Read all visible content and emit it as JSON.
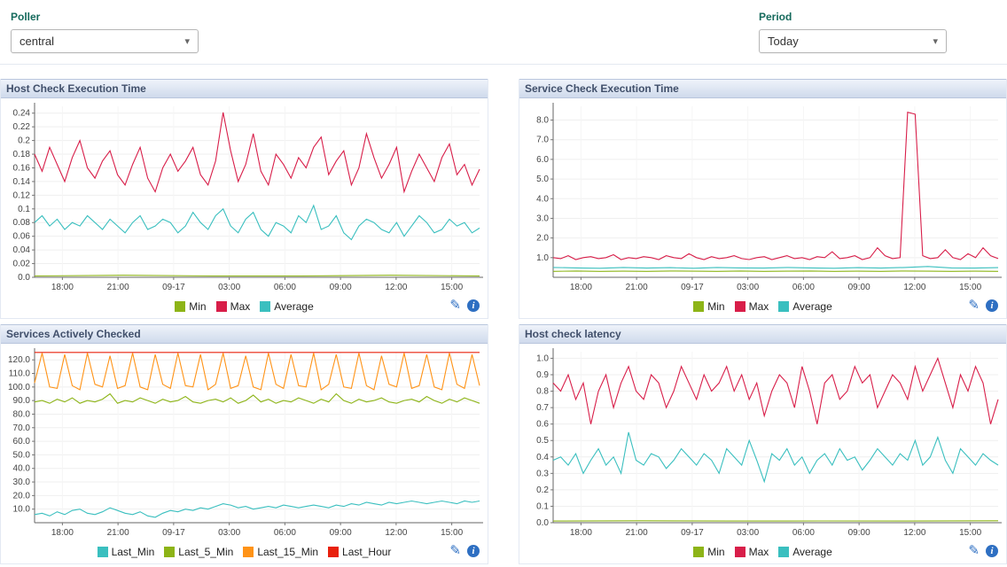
{
  "filters": {
    "poller_label": "Poller",
    "poller_value": "central",
    "period_label": "Period",
    "period_value": "Today"
  },
  "icons": {
    "dropdown_arrow": "▾",
    "edit": "✎",
    "info": "i"
  },
  "colors": {
    "min": "#8db417",
    "max": "#d81e49",
    "average": "#3abfbf",
    "last_min": "#3abfbf",
    "last_5_min": "#8db417",
    "last_15_min": "#ff9317",
    "last_hour": "#e8200c",
    "icon_blue": "#2e6fc2"
  },
  "charts": [
    {
      "title": "Host Check Execution Time",
      "type": "line",
      "x_tick_labels": [
        "18:00",
        "21:00",
        "09-17",
        "03:00",
        "06:00",
        "09:00",
        "12:00",
        "15:00"
      ],
      "ylim": [
        0,
        0.25
      ],
      "ytick_values": [
        0.24,
        0.22,
        0.2,
        0.18,
        0.16,
        0.14,
        0.12,
        0.1,
        0.08,
        0.06,
        0.04,
        0.02,
        0
      ],
      "ytick_labels": [
        "0.24",
        "0.22",
        "0.2",
        "0.18",
        "0.16",
        "0.14",
        "0.12",
        "0.1",
        "0.08",
        "0.06",
        "0.04",
        "0.02",
        "0.0"
      ],
      "legend": [
        {
          "label": "Min",
          "color": "#8db417"
        },
        {
          "label": "Max",
          "color": "#d81e49"
        },
        {
          "label": "Average",
          "color": "#3abfbf"
        }
      ],
      "series": [
        {
          "name": "Min",
          "color": "#8db417",
          "values": [
            0.002,
            0.003,
            0.002,
            0.002,
            0.003,
            0.002
          ]
        },
        {
          "name": "Average",
          "color": "#3abfbf",
          "values": [
            0.08,
            0.09,
            0.075,
            0.085,
            0.07,
            0.08,
            0.075,
            0.09,
            0.08,
            0.07,
            0.085,
            0.075,
            0.065,
            0.08,
            0.09,
            0.07,
            0.075,
            0.085,
            0.08,
            0.065,
            0.075,
            0.095,
            0.08,
            0.07,
            0.09,
            0.1,
            0.075,
            0.065,
            0.085,
            0.095,
            0.07,
            0.06,
            0.08,
            0.075,
            0.065,
            0.09,
            0.08,
            0.105,
            0.07,
            0.075,
            0.09,
            0.065,
            0.055,
            0.075,
            0.085,
            0.08,
            0.07,
            0.065,
            0.08,
            0.06,
            0.075,
            0.09,
            0.08,
            0.065,
            0.07,
            0.085,
            0.075,
            0.08,
            0.065,
            0.072
          ]
        },
        {
          "name": "Max",
          "color": "#d81e49",
          "values": [
            0.18,
            0.155,
            0.19,
            0.165,
            0.14,
            0.175,
            0.2,
            0.16,
            0.145,
            0.17,
            0.185,
            0.15,
            0.135,
            0.165,
            0.19,
            0.145,
            0.125,
            0.16,
            0.18,
            0.155,
            0.17,
            0.19,
            0.15,
            0.135,
            0.17,
            0.241,
            0.185,
            0.14,
            0.165,
            0.21,
            0.155,
            0.135,
            0.18,
            0.165,
            0.145,
            0.175,
            0.16,
            0.19,
            0.205,
            0.15,
            0.17,
            0.185,
            0.135,
            0.16,
            0.21,
            0.175,
            0.145,
            0.165,
            0.19,
            0.125,
            0.155,
            0.18,
            0.16,
            0.14,
            0.175,
            0.195,
            0.15,
            0.165,
            0.135,
            0.158
          ]
        }
      ]
    },
    {
      "title": "Service Check Execution Time",
      "type": "line",
      "x_tick_labels": [
        "18:00",
        "21:00",
        "09-17",
        "03:00",
        "06:00",
        "09:00",
        "12:00",
        "15:00"
      ],
      "ylim": [
        0,
        8.7
      ],
      "ytick_values": [
        8,
        7,
        6,
        5,
        4,
        3,
        2,
        1
      ],
      "ytick_labels": [
        "8.0",
        "7.0",
        "6.0",
        "5.0",
        "4.0",
        "3.0",
        "2.0",
        "1.0"
      ],
      "legend": [
        {
          "label": "Min",
          "color": "#8db417"
        },
        {
          "label": "Max",
          "color": "#d81e49"
        },
        {
          "label": "Average",
          "color": "#3abfbf"
        }
      ],
      "series": [
        {
          "name": "Min",
          "color": "#8db417",
          "values": [
            0.3,
            0.32,
            0.3,
            0.31,
            0.3,
            0.32,
            0.31,
            0.3,
            0.32,
            0.3,
            0.31,
            0.32,
            0.3,
            0.31,
            0.3,
            0.32,
            0.31,
            0.3,
            0.31,
            0.3
          ]
        },
        {
          "name": "Average",
          "color": "#3abfbf",
          "values": [
            0.5,
            0.48,
            0.46,
            0.5,
            0.47,
            0.49,
            0.46,
            0.5,
            0.48,
            0.47,
            0.5,
            0.48,
            0.46,
            0.49,
            0.47,
            0.5,
            0.55,
            0.48,
            0.47,
            0.49
          ]
        },
        {
          "name": "Max",
          "color": "#d81e49",
          "values": [
            1.0,
            0.95,
            1.1,
            0.9,
            1.0,
            1.05,
            0.95,
            1.0,
            1.15,
            0.9,
            1.0,
            0.95,
            1.05,
            1.0,
            0.9,
            1.1,
            1.0,
            0.95,
            1.2,
            1.0,
            0.9,
            1.05,
            0.95,
            1.0,
            1.1,
            0.95,
            0.9,
            1.0,
            1.05,
            0.9,
            1.0,
            1.1,
            0.95,
            1.0,
            0.9,
            1.05,
            1.0,
            1.3,
            0.95,
            1.0,
            1.1,
            0.9,
            1.0,
            1.5,
            1.1,
            0.95,
            1.0,
            8.4,
            8.3,
            1.1,
            0.95,
            1.0,
            1.4,
            1.0,
            0.9,
            1.2,
            1.0,
            1.5,
            1.1,
            0.95
          ]
        }
      ]
    },
    {
      "title": "Services Actively Checked",
      "type": "line",
      "x_tick_labels": [
        "18:00",
        "21:00",
        "09-17",
        "03:00",
        "06:00",
        "09:00",
        "12:00",
        "15:00"
      ],
      "ylim": [
        0,
        126
      ],
      "ytick_values": [
        120,
        110,
        100,
        90,
        80,
        70,
        60,
        50,
        40,
        30,
        20,
        10
      ],
      "ytick_labels": [
        "120.0",
        "110.0",
        "100.0",
        "90.0",
        "80.0",
        "70.0",
        "60.0",
        "50.0",
        "40.0",
        "30.0",
        "20.0",
        "10.0"
      ],
      "legend": [
        {
          "label": "Last_Min",
          "color": "#3abfbf"
        },
        {
          "label": "Last_5_Min",
          "color": "#8db417"
        },
        {
          "label": "Last_15_Min",
          "color": "#ff9317"
        },
        {
          "label": "Last_Hour",
          "color": "#e8200c"
        }
      ],
      "series": [
        {
          "name": "Last_Hour",
          "color": "#e8200c",
          "values": [
            125.5,
            125.5
          ]
        },
        {
          "name": "Last_Min",
          "color": "#3abfbf",
          "values": [
            6,
            7,
            5,
            8,
            6,
            9,
            10,
            7,
            6,
            8,
            11,
            9,
            7,
            6,
            8,
            5,
            4,
            7,
            9,
            8,
            10,
            9,
            11,
            10,
            12,
            14,
            13,
            11,
            12,
            10,
            11,
            12,
            11,
            13,
            12,
            11,
            12,
            13,
            12,
            11,
            13,
            12,
            14,
            13,
            15,
            14,
            13,
            15,
            14,
            15,
            16,
            15,
            14,
            15,
            16,
            15,
            14,
            16,
            15,
            16
          ]
        },
        {
          "name": "Last_5_Min",
          "color": "#8db417",
          "values": [
            89,
            90,
            88,
            91,
            89,
            92,
            88,
            90,
            89,
            91,
            95,
            88,
            90,
            89,
            92,
            90,
            88,
            91,
            89,
            90,
            93,
            89,
            88,
            90,
            91,
            89,
            92,
            88,
            90,
            94,
            89,
            91,
            88,
            90,
            89,
            92,
            90,
            88,
            91,
            89,
            95,
            90,
            88,
            91,
            89,
            90,
            92,
            89,
            88,
            90,
            91,
            89,
            93,
            90,
            88,
            91,
            89,
            92,
            90,
            88
          ]
        },
        {
          "name": "Last_15_Min",
          "color": "#ff9317",
          "values": [
            103,
            125,
            100,
            99,
            124,
            101,
            98,
            125,
            102,
            100,
            123,
            99,
            101,
            125,
            100,
            98,
            124,
            102,
            99,
            125,
            101,
            100,
            124,
            98,
            102,
            125,
            99,
            101,
            123,
            100,
            98,
            125,
            102,
            99,
            124,
            101,
            100,
            125,
            98,
            102,
            124,
            100,
            99,
            125,
            101,
            98,
            123,
            102,
            100,
            125,
            99,
            101,
            124,
            100,
            98,
            125,
            102,
            99,
            124,
            101
          ]
        }
      ]
    },
    {
      "title": "Host check latency",
      "type": "line",
      "x_tick_labels": [
        "18:00",
        "21:00",
        "09-17",
        "03:00",
        "06:00",
        "09:00",
        "12:00",
        "15:00"
      ],
      "ylim": [
        0,
        1.04
      ],
      "ytick_values": [
        1.0,
        0.9,
        0.8,
        0.7,
        0.6,
        0.5,
        0.4,
        0.3,
        0.2,
        0.1,
        0
      ],
      "ytick_labels": [
        "1.0",
        "0.9",
        "0.8",
        "0.7",
        "0.6",
        "0.5",
        "0.4",
        "0.3",
        "0.2",
        "0.1",
        "0.0"
      ],
      "legend": [
        {
          "label": "Min",
          "color": "#8db417"
        },
        {
          "label": "Max",
          "color": "#d81e49"
        },
        {
          "label": "Average",
          "color": "#3abfbf"
        }
      ],
      "series": [
        {
          "name": "Min",
          "color": "#8db417",
          "values": [
            0.01,
            0.012,
            0.01,
            0.011,
            0.01,
            0.012
          ]
        },
        {
          "name": "Average",
          "color": "#3abfbf",
          "values": [
            0.38,
            0.4,
            0.35,
            0.42,
            0.3,
            0.38,
            0.45,
            0.35,
            0.4,
            0.3,
            0.55,
            0.38,
            0.35,
            0.42,
            0.4,
            0.33,
            0.38,
            0.45,
            0.4,
            0.35,
            0.42,
            0.38,
            0.3,
            0.45,
            0.4,
            0.35,
            0.5,
            0.38,
            0.25,
            0.42,
            0.38,
            0.45,
            0.35,
            0.4,
            0.3,
            0.38,
            0.42,
            0.35,
            0.45,
            0.38,
            0.4,
            0.32,
            0.38,
            0.45,
            0.4,
            0.35,
            0.42,
            0.38,
            0.5,
            0.35,
            0.4,
            0.52,
            0.38,
            0.3,
            0.45,
            0.4,
            0.35,
            0.42,
            0.38,
            0.35
          ]
        },
        {
          "name": "Max",
          "color": "#d81e49",
          "values": [
            0.85,
            0.8,
            0.9,
            0.75,
            0.85,
            0.6,
            0.8,
            0.9,
            0.7,
            0.85,
            0.95,
            0.8,
            0.75,
            0.9,
            0.85,
            0.7,
            0.8,
            0.95,
            0.85,
            0.75,
            0.9,
            0.8,
            0.85,
            0.95,
            0.8,
            0.9,
            0.75,
            0.85,
            0.65,
            0.8,
            0.9,
            0.85,
            0.7,
            0.95,
            0.8,
            0.6,
            0.85,
            0.9,
            0.75,
            0.8,
            0.95,
            0.85,
            0.9,
            0.7,
            0.8,
            0.9,
            0.85,
            0.75,
            0.95,
            0.8,
            0.9,
            1.0,
            0.85,
            0.7,
            0.9,
            0.8,
            0.95,
            0.85,
            0.6,
            0.75
          ]
        }
      ]
    }
  ]
}
